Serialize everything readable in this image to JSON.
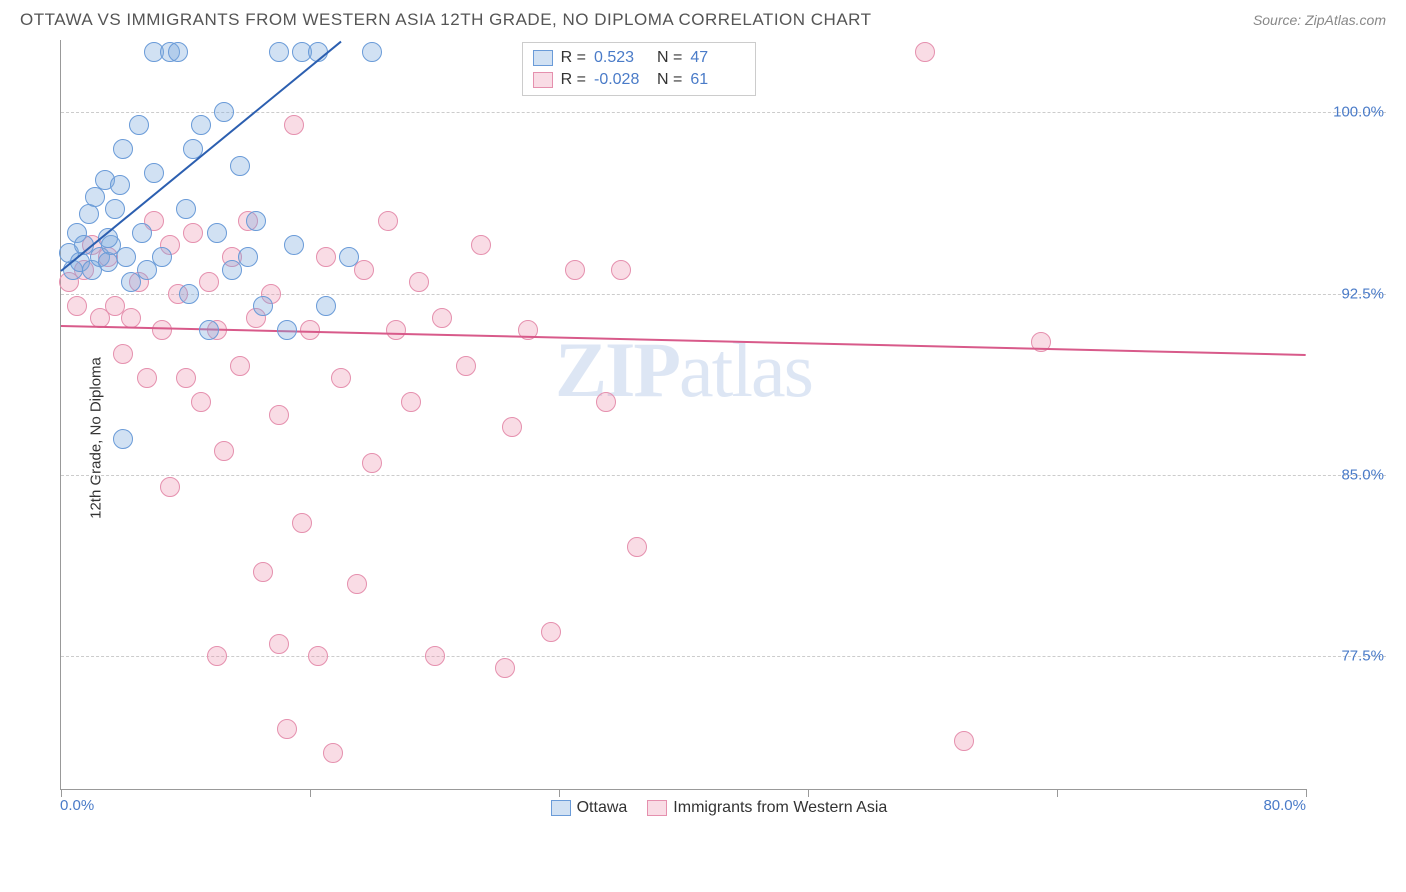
{
  "title": "OTTAWA VS IMMIGRANTS FROM WESTERN ASIA 12TH GRADE, NO DIPLOMA CORRELATION CHART",
  "source": "Source: ZipAtlas.com",
  "watermark_a": "ZIP",
  "watermark_b": "atlas",
  "chart": {
    "type": "scatter",
    "ylabel": "12th Grade, No Diploma",
    "xlim": [
      0,
      80
    ],
    "ylim": [
      72,
      103
    ],
    "y_ticks": [
      77.5,
      85.0,
      92.5,
      100.0
    ],
    "y_tick_labels": [
      "77.5%",
      "85.0%",
      "92.5%",
      "100.0%"
    ],
    "x_ticks": [
      0,
      16,
      32,
      48,
      64,
      80
    ],
    "x_start_label": "0.0%",
    "x_end_label": "80.0%",
    "background_color": "#ffffff",
    "grid_color": "#cccccc",
    "axis_color": "#999999",
    "tick_label_color": "#4a7bc8",
    "dot_radius": 10,
    "series": {
      "ottawa": {
        "label": "Ottawa",
        "fill": "rgba(124,169,222,0.35)",
        "stroke": "#6a9bd8",
        "trend_color": "#2c5fb0",
        "r_label": "R =",
        "r_value": "0.523",
        "n_label": "N =",
        "n_value": "47",
        "trend": {
          "x1": 0,
          "y1": 93.5,
          "x2": 18,
          "y2": 103
        },
        "points": [
          [
            0.5,
            94.2
          ],
          [
            0.8,
            93.5
          ],
          [
            1.0,
            95.0
          ],
          [
            1.2,
            93.8
          ],
          [
            1.5,
            94.5
          ],
          [
            1.8,
            95.8
          ],
          [
            2.0,
            93.5
          ],
          [
            2.2,
            96.5
          ],
          [
            2.5,
            94.0
          ],
          [
            2.8,
            97.2
          ],
          [
            3.0,
            93.8
          ],
          [
            3.2,
            94.5
          ],
          [
            3.5,
            96.0
          ],
          [
            3.8,
            97.0
          ],
          [
            4.0,
            98.5
          ],
          [
            4.2,
            94.0
          ],
          [
            4.5,
            93.0
          ],
          [
            5.0,
            99.5
          ],
          [
            5.2,
            95.0
          ],
          [
            5.5,
            93.5
          ],
          [
            6.0,
            97.5
          ],
          [
            6.0,
            102.5
          ],
          [
            6.5,
            94.0
          ],
          [
            7.0,
            102.5
          ],
          [
            7.5,
            102.5
          ],
          [
            8.0,
            96.0
          ],
          [
            8.2,
            92.5
          ],
          [
            8.5,
            98.5
          ],
          [
            9.0,
            99.5
          ],
          [
            9.5,
            91.0
          ],
          [
            10.0,
            95.0
          ],
          [
            10.5,
            100.0
          ],
          [
            11.0,
            93.5
          ],
          [
            11.5,
            97.8
          ],
          [
            12.0,
            94.0
          ],
          [
            12.5,
            95.5
          ],
          [
            13.0,
            92.0
          ],
          [
            14.0,
            102.5
          ],
          [
            14.5,
            91.0
          ],
          [
            15.0,
            94.5
          ],
          [
            15.5,
            102.5
          ],
          [
            16.5,
            102.5
          ],
          [
            17.0,
            92.0
          ],
          [
            18.5,
            94.0
          ],
          [
            20.0,
            102.5
          ],
          [
            4.0,
            86.5
          ],
          [
            3.0,
            94.8
          ]
        ]
      },
      "immigrants": {
        "label": "Immigrants from Western Asia",
        "fill": "rgba(235,140,170,0.30)",
        "stroke": "#e590ae",
        "trend_color": "#d85a8a",
        "r_label": "R =",
        "r_value": "-0.028",
        "n_label": "N =",
        "n_value": "61",
        "trend": {
          "x1": 0,
          "y1": 91.2,
          "x2": 80,
          "y2": 90.0
        },
        "points": [
          [
            0.5,
            93.0
          ],
          [
            1.0,
            92.0
          ],
          [
            1.5,
            93.5
          ],
          [
            2.0,
            94.5
          ],
          [
            2.5,
            91.5
          ],
          [
            3.0,
            94.0
          ],
          [
            3.5,
            92.0
          ],
          [
            4.0,
            90.0
          ],
          [
            4.5,
            91.5
          ],
          [
            5.0,
            93.0
          ],
          [
            5.5,
            89.0
          ],
          [
            6.0,
            95.5
          ],
          [
            6.5,
            91.0
          ],
          [
            7.0,
            94.5
          ],
          [
            7.5,
            92.5
          ],
          [
            8.0,
            89.0
          ],
          [
            8.5,
            95.0
          ],
          [
            9.0,
            88.0
          ],
          [
            9.5,
            93.0
          ],
          [
            10.0,
            91.0
          ],
          [
            10.5,
            86.0
          ],
          [
            11.0,
            94.0
          ],
          [
            11.5,
            89.5
          ],
          [
            12.0,
            95.5
          ],
          [
            12.5,
            91.5
          ],
          [
            13.0,
            81.0
          ],
          [
            13.5,
            92.5
          ],
          [
            14.0,
            87.5
          ],
          [
            14.5,
            74.5
          ],
          [
            15.0,
            99.5
          ],
          [
            15.5,
            83.0
          ],
          [
            16.0,
            91.0
          ],
          [
            16.5,
            77.5
          ],
          [
            17.0,
            94.0
          ],
          [
            17.5,
            73.5
          ],
          [
            18.0,
            89.0
          ],
          [
            19.0,
            80.5
          ],
          [
            19.5,
            93.5
          ],
          [
            20.0,
            85.5
          ],
          [
            21.0,
            95.5
          ],
          [
            21.5,
            91.0
          ],
          [
            22.5,
            88.0
          ],
          [
            23.0,
            93.0
          ],
          [
            24.0,
            77.5
          ],
          [
            24.5,
            91.5
          ],
          [
            26.0,
            89.5
          ],
          [
            27.0,
            94.5
          ],
          [
            28.5,
            77.0
          ],
          [
            29.0,
            87.0
          ],
          [
            30.0,
            91.0
          ],
          [
            31.5,
            78.5
          ],
          [
            33.0,
            93.5
          ],
          [
            35.0,
            88.0
          ],
          [
            37.0,
            82.0
          ],
          [
            55.5,
            102.5
          ],
          [
            58.0,
            74.0
          ],
          [
            63.0,
            90.5
          ],
          [
            36.0,
            93.5
          ],
          [
            14.0,
            78.0
          ],
          [
            10.0,
            77.5
          ],
          [
            7.0,
            84.5
          ]
        ]
      }
    }
  }
}
